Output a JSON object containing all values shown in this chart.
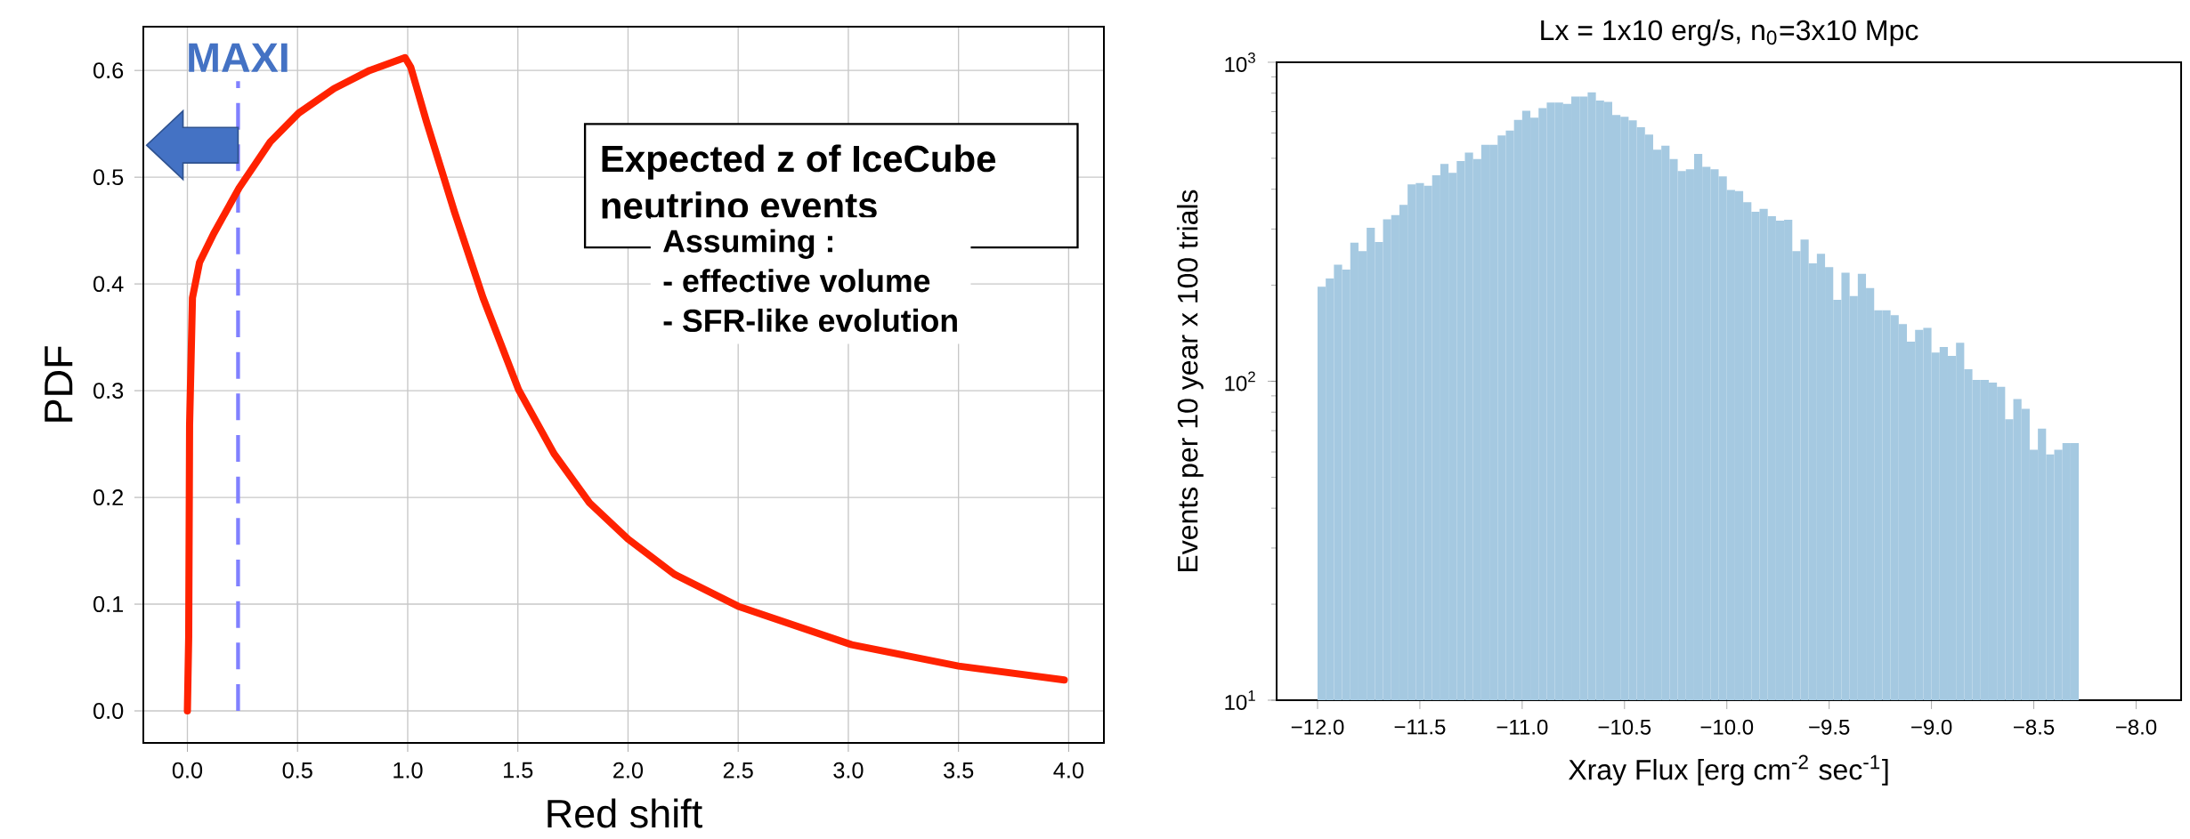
{
  "chart_data": [
    {
      "type": "line",
      "xlabel": "Red shift",
      "ylabel": "PDF",
      "x": [
        0,
        0.006,
        0.01,
        0.023,
        0.055,
        0.119,
        0.235,
        0.376,
        0.505,
        0.666,
        0.827,
        0.988,
        1.014,
        1.084,
        1.213,
        1.342,
        1.503,
        1.664,
        1.825,
        2.0,
        2.21,
        2.5,
        3.015,
        3.5,
        3.98
      ],
      "values": [
        0,
        0.07,
        0.268,
        0.387,
        0.42,
        0.447,
        0.49,
        0.533,
        0.56,
        0.583,
        0.6,
        0.612,
        0.603,
        0.553,
        0.467,
        0.387,
        0.301,
        0.241,
        0.195,
        0.161,
        0.128,
        0.098,
        0.062,
        0.042,
        0.029
      ],
      "color": "#ff2200",
      "xlim": [
        -0.2,
        4.16
      ],
      "ylim": [
        -0.03,
        0.641
      ],
      "xticks": [
        {
          "value": 0,
          "label": "0.0"
        },
        0.5,
        {
          "value": 1,
          "label": "1.0"
        },
        1.5,
        {
          "value": 2,
          "label": "2.0"
        },
        2.5,
        {
          "value": 3,
          "label": "3.0"
        },
        3.5,
        {
          "value": 4,
          "label": "4.0"
        }
      ],
      "yticks": [
        {
          "value": 0,
          "label": "0.0"
        },
        0.1,
        0.2,
        0.3,
        0.4,
        0.5,
        0.6
      ],
      "grid": true,
      "ref_lines": [
        {
          "axis": "x",
          "value": 0.23,
          "label": "MAXI",
          "color": "#8080ff",
          "line_style": "dashed"
        }
      ],
      "annotations": [
        "Expected z of IceCube neutrino events",
        "Assuming :",
        "- effective volume",
        "- SFR-like evolution"
      ]
    },
    {
      "type": "histogram",
      "title": "Lx = 1x10 erg/s, n$_{0}$=3x10 Mpc",
      "xlabel": "Xray Flux [erg cm$^{-2}$ sec$^{-1}$]",
      "ylabel": "Events per 10 year x 100 trials",
      "bins": [
        -12,
        -11.96,
        -11.92,
        -11.88,
        -11.84,
        -11.8,
        -11.76,
        -11.72,
        -11.68,
        -11.64,
        -11.6,
        -11.56,
        -11.52,
        -11.48,
        -11.44,
        -11.4,
        -11.36,
        -11.32,
        -11.28,
        -11.24,
        -11.2,
        -11.16,
        -11.12,
        -11.08,
        -11.04,
        -11,
        -10.96,
        -10.92,
        -10.88,
        -10.84,
        -10.8,
        -10.76,
        -10.72,
        -10.68,
        -10.64,
        -10.6,
        -10.56,
        -10.52,
        -10.48,
        -10.44,
        -10.4,
        -10.36,
        -10.32,
        -10.28,
        -10.24,
        -10.2,
        -10.16,
        -10.12,
        -10.08,
        -10.04,
        -10,
        -9.96,
        -9.92,
        -9.88,
        -9.84,
        -9.8,
        -9.76,
        -9.72,
        -9.68,
        -9.64,
        -9.6,
        -9.56,
        -9.52,
        -9.48,
        -9.44,
        -9.4,
        -9.36,
        -9.32,
        -9.28,
        -9.24,
        -9.2,
        -9.16,
        -9.12,
        -9.08,
        -9.04,
        -9,
        -8.96,
        -8.92,
        -8.88,
        -8.84,
        -8.8,
        -8.76,
        -8.72,
        -8.68,
        -8.64,
        -8.6,
        -8.56,
        -8.52,
        -8.48,
        -8.44,
        -8.4,
        -8.36,
        -8.32,
        -8.28
      ],
      "values": [
        198,
        210,
        232,
        224,
        272,
        256,
        303,
        273,
        322,
        332,
        357,
        414,
        418,
        410,
        442,
        480,
        450,
        490,
        521,
        497,
        551,
        551,
        590,
        611,
        660,
        705,
        670,
        718,
        748,
        748,
        741,
        781,
        781,
        805,
        759,
        752,
        684,
        675,
        658,
        626,
        593,
        532,
        548,
        497,
        456,
        462,
        516,
        470,
        462,
        439,
        398,
        395,
        364,
        340,
        347,
        329,
        319,
        321,
        256,
        278,
        234,
        251,
        228,
        180,
        219,
        185,
        217,
        196,
        167,
        167,
        161,
        151,
        133,
        145,
        147,
        123,
        128,
        120,
        132,
        109,
        101,
        101,
        99,
        96,
        76,
        88,
        82,
        61,
        71,
        59,
        61,
        64,
        64
      ],
      "color": "#a5c9e1",
      "log": true,
      "xlim": [
        -12.2,
        -7.78
      ],
      "ylim": [
        10,
        1000
      ],
      "xticks": [
        {
          "value": -12,
          "label": "−12.0"
        },
        {
          "value": -11.5,
          "label": "−11.5"
        },
        {
          "value": -11,
          "label": "−11.0"
        },
        {
          "value": -10.5,
          "label": "−10.5"
        },
        {
          "value": -10,
          "label": "−10.0"
        },
        {
          "value": -9.5,
          "label": "−9.5"
        },
        {
          "value": -9,
          "label": "−9.0"
        },
        {
          "value": -8.5,
          "label": "−8.5"
        },
        {
          "value": -8,
          "label": "−8.0"
        }
      ],
      "yticks": [
        {
          "value": 10,
          "label": "10$^{1}$"
        },
        {
          "value": 100,
          "label": "10$^{2}$"
        },
        {
          "value": 1000,
          "label": "10$^{3}$"
        }
      ]
    }
  ]
}
